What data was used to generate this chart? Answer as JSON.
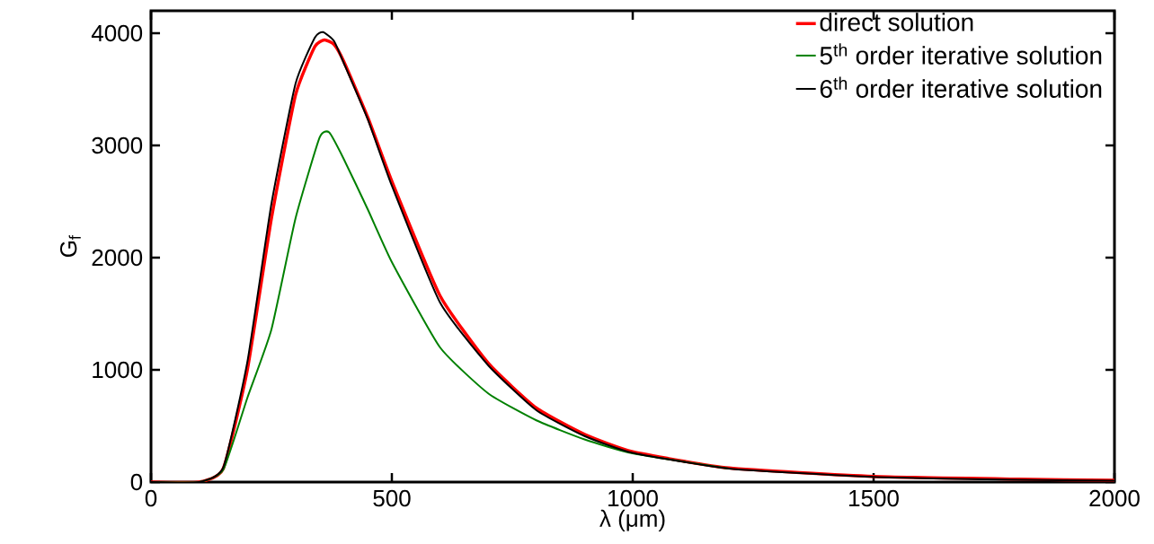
{
  "chart_data": {
    "type": "line",
    "xlabel": "λ (μm)",
    "ylabel": "G$_{f}$",
    "xlim": [
      0,
      2000
    ],
    "ylim": [
      0,
      4200
    ],
    "xticks": [
      0,
      500,
      1000,
      1500,
      2000
    ],
    "yticks": [
      0,
      1000,
      2000,
      3000,
      4000
    ],
    "grid": false,
    "legend": "top right",
    "line_style": "solid",
    "marker": "none",
    "series": [
      {
        "name": "direct solution",
        "color": "#ff0000",
        "x": [
          0,
          100,
          150,
          200,
          250,
          300,
          340,
          360,
          380,
          400,
          450,
          500,
          600,
          700,
          800,
          900,
          1000,
          1200,
          1500,
          1800,
          2000
        ],
        "values": [
          0,
          0,
          120,
          1000,
          2350,
          3450,
          3880,
          3940,
          3900,
          3750,
          3250,
          2680,
          1660,
          1060,
          660,
          425,
          270,
          125,
          50,
          25,
          15
        ]
      },
      {
        "name": "5$^{th}$ order iterative solution",
        "color": "#008000",
        "x": [
          0,
          100,
          150,
          200,
          250,
          300,
          350,
          370,
          400,
          450,
          500,
          600,
          700,
          800,
          900,
          1000,
          1200
        ],
        "values": [
          0,
          0,
          110,
          750,
          1360,
          2350,
          3070,
          3115,
          2880,
          2430,
          1960,
          1200,
          790,
          550,
          380,
          255,
          120
        ]
      },
      {
        "name": "6$^{th}$ order iterative solution",
        "color": "#000000",
        "x": [
          0,
          100,
          150,
          200,
          250,
          300,
          340,
          357,
          380,
          400,
          450,
          500,
          600,
          700,
          800,
          900,
          1000,
          1200,
          1500,
          1800,
          2000
        ],
        "values": [
          0,
          0,
          130,
          1070,
          2480,
          3550,
          3960,
          4010,
          3930,
          3736,
          3232,
          2640,
          1600,
          1040,
          640,
          410,
          260,
          120,
          45,
          20,
          12
        ]
      }
    ]
  }
}
